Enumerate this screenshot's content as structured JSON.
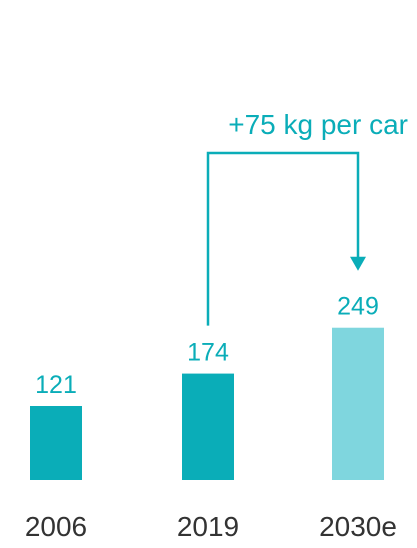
{
  "chart_data": {
    "type": "bar",
    "categories": [
      "2006",
      "2019",
      "2030e"
    ],
    "values": [
      121,
      174,
      249
    ],
    "value_labels": [
      "121",
      "174",
      "249"
    ],
    "bar_colors": [
      "#0aadb8",
      "#0aadb8",
      "#7fd6de"
    ],
    "annotation": {
      "text": "+75 kg per car",
      "from_category": "2019",
      "to_category": "2030e"
    },
    "ylim": [
      0,
      280
    ],
    "grid": false,
    "legend": "none"
  },
  "colors": {
    "accent": "#0aadb8",
    "estimate": "#7fd6de",
    "label_text": "#0aadb8",
    "axis_text": "#333333"
  }
}
